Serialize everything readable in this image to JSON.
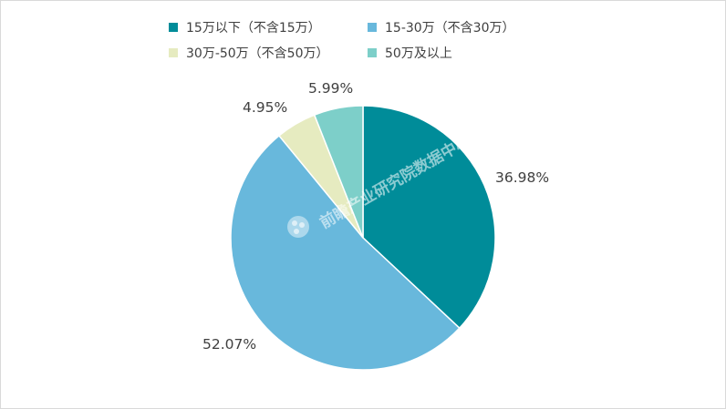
{
  "chart_data": {
    "type": "pie",
    "title": "",
    "legend_position": "top",
    "slices": [
      {
        "label": "15万以下（不含15万）",
        "value": 36.98,
        "value_label": "36.98%",
        "color": "#008C99"
      },
      {
        "label": "15-30万（不含30万）",
        "value": 52.07,
        "value_label": "52.07%",
        "color": "#68B8DC"
      },
      {
        "label": "30万-50万（不含50万）",
        "value": 4.95,
        "value_label": "4.95%",
        "color": "#E6EBC0"
      },
      {
        "label": "50万及以上",
        "value": 5.99,
        "value_label": "5.99%",
        "color": "#7DCFC9"
      }
    ]
  },
  "watermark": "前瞻产业研究院数据中心"
}
